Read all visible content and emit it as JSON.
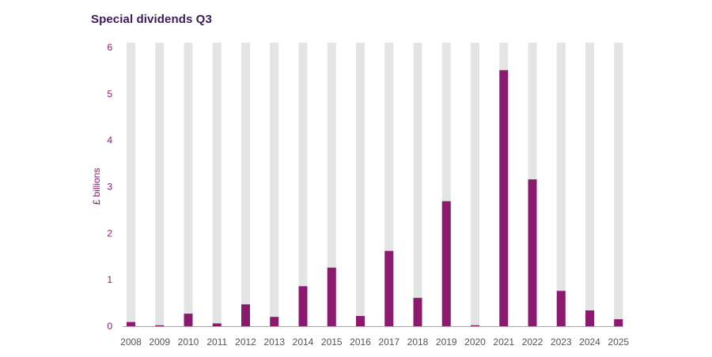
{
  "chart_data": {
    "type": "bar",
    "title": "Special dividends Q3",
    "xlabel": "",
    "ylabel": "£ billions",
    "ylim": [
      0,
      6
    ],
    "yticks": [
      "0",
      "1",
      "2",
      "3",
      "4",
      "5",
      "6"
    ],
    "grid": false,
    "legend": "none",
    "categories": [
      "2008",
      "2009",
      "2010",
      "2011",
      "2012",
      "2013",
      "2014",
      "2015",
      "2016",
      "2017",
      "2018",
      "2019",
      "2020",
      "2021",
      "2022",
      "2023",
      "2024",
      "2025"
    ],
    "values": [
      0.09,
      0.02,
      0.27,
      0.06,
      0.47,
      0.2,
      0.86,
      1.26,
      0.22,
      1.62,
      0.61,
      2.69,
      0.02,
      5.51,
      3.16,
      0.76,
      0.34,
      0.15
    ],
    "background_bar_value": 6.1,
    "colors": {
      "bar": "#8b1a6e",
      "background_bar": "#e3e4e4",
      "axis": "#a6a6a6",
      "title": "#3d1a5c",
      "ytick": "#8b1a6e",
      "xtick": "#555555"
    }
  }
}
